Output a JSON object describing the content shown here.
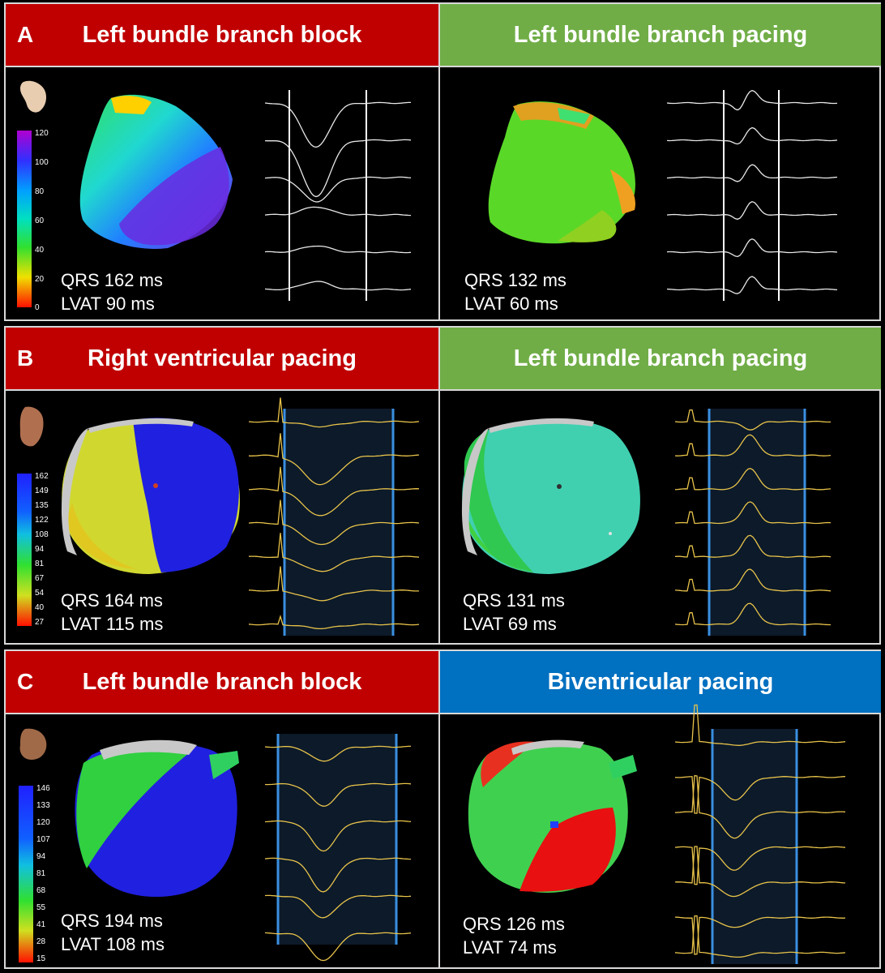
{
  "panels": [
    {
      "letter": "A",
      "left": {
        "title": "Left bundle branch block",
        "qrs": "QRS 162 ms",
        "lvat": "LVAT 90 ms",
        "scale": [
          "120",
          "100",
          "80",
          "60",
          "40",
          "20",
          "0"
        ]
      },
      "right": {
        "title": "Left bundle branch pacing",
        "qrs": "QRS 132 ms",
        "lvat": "LVAT 60 ms"
      }
    },
    {
      "letter": "B",
      "left": {
        "title": "Right ventricular pacing",
        "qrs": "QRS 164 ms",
        "lvat": "LVAT 115 ms",
        "scale": [
          "162",
          "149",
          "135",
          "122",
          "108",
          "94",
          "81",
          "67",
          "54",
          "40",
          "27"
        ]
      },
      "right": {
        "title": "Left bundle branch pacing",
        "qrs": "QRS 131 ms",
        "lvat": "LVAT 69 ms"
      }
    },
    {
      "letter": "C",
      "left": {
        "title": "Left bundle branch block",
        "qrs": "QRS 194 ms",
        "lvat": "LVAT 108 ms",
        "scale": [
          "146",
          "133",
          "120",
          "107",
          "94",
          "81",
          "68",
          "55",
          "41",
          "28",
          "15"
        ]
      },
      "right": {
        "title": "Biventricular pacing",
        "qrs": "QRS 126 ms",
        "lvat": "LVAT 74 ms"
      }
    }
  ],
  "colors": {
    "header_red": "#c00000",
    "header_green": "#70ad47",
    "header_blue": "#0070c0",
    "trace_white": "#e8e8e8",
    "trace_yellow": "#e8c34a",
    "window_blue": "#3a8fe0"
  }
}
